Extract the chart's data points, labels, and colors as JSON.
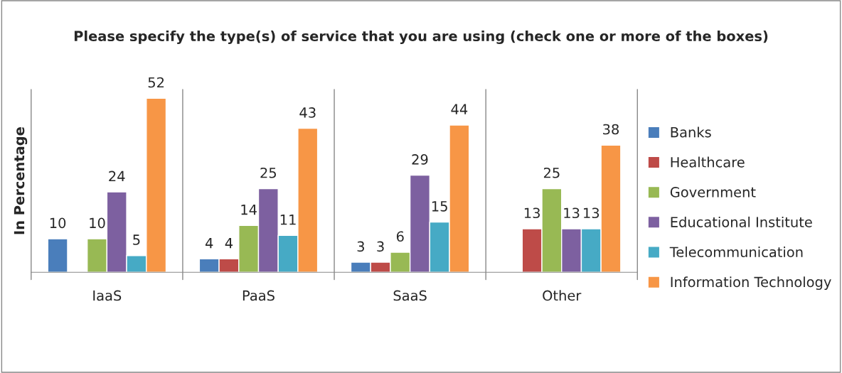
{
  "chart_data": {
    "type": "bar",
    "title": "Please specify the type(s) of service that you are using (check one or more of the boxes)",
    "ylabel": "In Percentage",
    "data_labels": true,
    "categories": [
      "IaaS",
      "PaaS",
      "SaaS",
      "Other"
    ],
    "grid": "x",
    "legend": "right",
    "series": [
      {
        "name": "Banks",
        "color": "#4a7ebb",
        "values": [
          10,
          4,
          3,
          null
        ]
      },
      {
        "name": "Healthcare",
        "color": "#be4b48",
        "values": [
          null,
          4,
          3,
          13
        ]
      },
      {
        "name": "Government",
        "color": "#98b954",
        "values": [
          10,
          14,
          6,
          25
        ]
      },
      {
        "name": "Educational Institute",
        "color": "#7d60a0",
        "values": [
          24,
          25,
          29,
          13
        ]
      },
      {
        "name": "Telecommunication",
        "color": "#46aac5",
        "values": [
          5,
          11,
          15,
          13
        ]
      },
      {
        "name": "Information Technology",
        "color": "#f79646",
        "values": [
          52,
          43,
          44,
          38
        ]
      }
    ]
  }
}
